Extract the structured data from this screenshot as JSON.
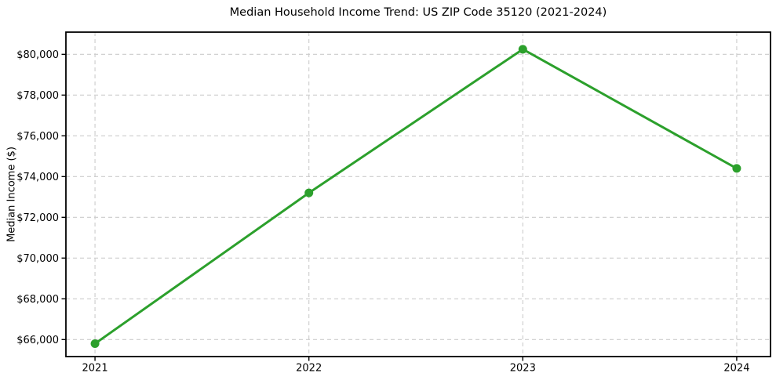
{
  "chart_data": {
    "type": "line",
    "title": "Median Household Income Trend: US ZIP Code 35120 (2021-2024)",
    "xlabel": "",
    "ylabel": "Median Income ($)",
    "x": [
      2021,
      2022,
      2023,
      2024
    ],
    "xtick_labels": [
      "2021",
      "2022",
      "2023",
      "2024"
    ],
    "series": [
      {
        "name": "Median Household Income",
        "values": [
          65800,
          73200,
          80250,
          74400
        ]
      }
    ],
    "yticks": [
      66000,
      68000,
      70000,
      72000,
      74000,
      76000,
      78000,
      80000
    ],
    "ytick_labels": [
      "$66,000",
      "$68,000",
      "$70,000",
      "$72,000",
      "$74,000",
      "$76,000",
      "$78,000",
      "$80,000"
    ],
    "xlim": [
      2020.864,
      2024.158
    ],
    "ylim": [
      65165,
      81090
    ],
    "grid": true,
    "grid_style": "dashed",
    "legend_position": "none",
    "marker": "circle"
  },
  "colors": {
    "line": "#2ca02c",
    "marker": "#2ca02c",
    "grid": "#cccccc",
    "axis": "#000000",
    "text": "#000000",
    "background": "#ffffff"
  }
}
